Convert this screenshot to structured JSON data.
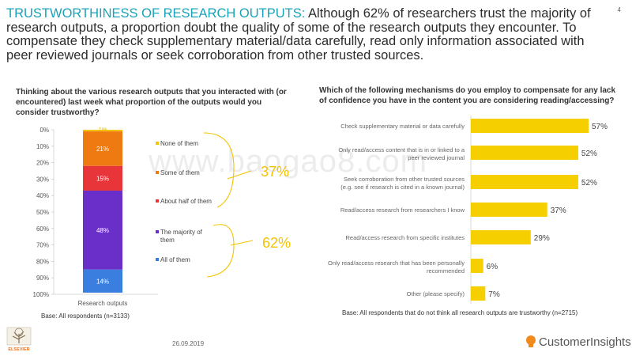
{
  "page_number": "4",
  "headline": {
    "highlight": "TRUSTWORTHINESS OF RESEARCH OUTPUTS:",
    "text": " Although 62% of researchers trust the majority of research outputs, a proportion doubt the quality of some of the research outputs they encounter. To compensate they check supplementary material/data carefully, read only information associated with peer reviewed journals or seek corroboration from other trusted sources."
  },
  "left_question": "Thinking about the various research outputs that you interacted with (or encountered) last week what proportion of the outputs would you consider trustworthy?",
  "right_question": "Which of the following mechanisms do you employ to compensate for any lack of confidence you have in the content you are considering reading/accessing?",
  "base_left": "Base: All respondents (n=3133)",
  "base_right": "Base: All respondents that do not think all research outputs are trustworthy (n=2715)",
  "date": "26.09.2019",
  "watermark": "www.baogao8.com",
  "brand": {
    "publisher": "ELSEVIER",
    "customer": "CustomerInsights"
  },
  "colors": {
    "accent": "#1aa3b8",
    "bracket": "#f5c200",
    "callout": "#f5c200",
    "bar": "#f5cf00"
  },
  "chart_data": [
    {
      "type": "bar",
      "subtype": "stacked-100",
      "categories": [
        "Research outputs"
      ],
      "yticks": [
        "0%",
        "10%",
        "20%",
        "30%",
        "40%",
        "50%",
        "60%",
        "70%",
        "80%",
        "90%",
        "100%"
      ],
      "ylim": [
        0,
        100
      ],
      "series": [
        {
          "name": "None of them",
          "values": [
            1
          ],
          "label": "1%",
          "color": "#f5c200"
        },
        {
          "name": "Some of them",
          "values": [
            21
          ],
          "label": "21%",
          "color": "#f07a12"
        },
        {
          "name": "About half of them",
          "values": [
            15
          ],
          "label": "15%",
          "color": "#e8353a"
        },
        {
          "name": "The majority of them",
          "values": [
            48
          ],
          "label": "48%",
          "color": "#6a2fc8"
        },
        {
          "name": "All of them",
          "values": [
            14
          ],
          "label": "14%",
          "color": "#3a7fe0"
        }
      ],
      "callouts": [
        {
          "label": "37%",
          "covers": [
            "None of them",
            "Some of them",
            "About half of them"
          ]
        },
        {
          "label": "62%",
          "covers": [
            "The majority of them",
            "All of them"
          ]
        }
      ]
    },
    {
      "type": "bar",
      "orientation": "horizontal",
      "categories": [
        "Check supplementary material or data carefully",
        "Only read/access content that is in or linked to a peer reviewed journal",
        "Seek corroboration from other trusted sources (e.g. see if research is cited in a known journal)",
        "Read/access research from researchers I know",
        "Read/access research from specific institutes",
        "Only read/access research that has been personally recommended",
        "Other (please specify)"
      ],
      "values": [
        57,
        52,
        52,
        37,
        29,
        6,
        7
      ],
      "labels": [
        "57%",
        "52%",
        "52%",
        "37%",
        "29%",
        "6%",
        "7%"
      ]
    }
  ]
}
